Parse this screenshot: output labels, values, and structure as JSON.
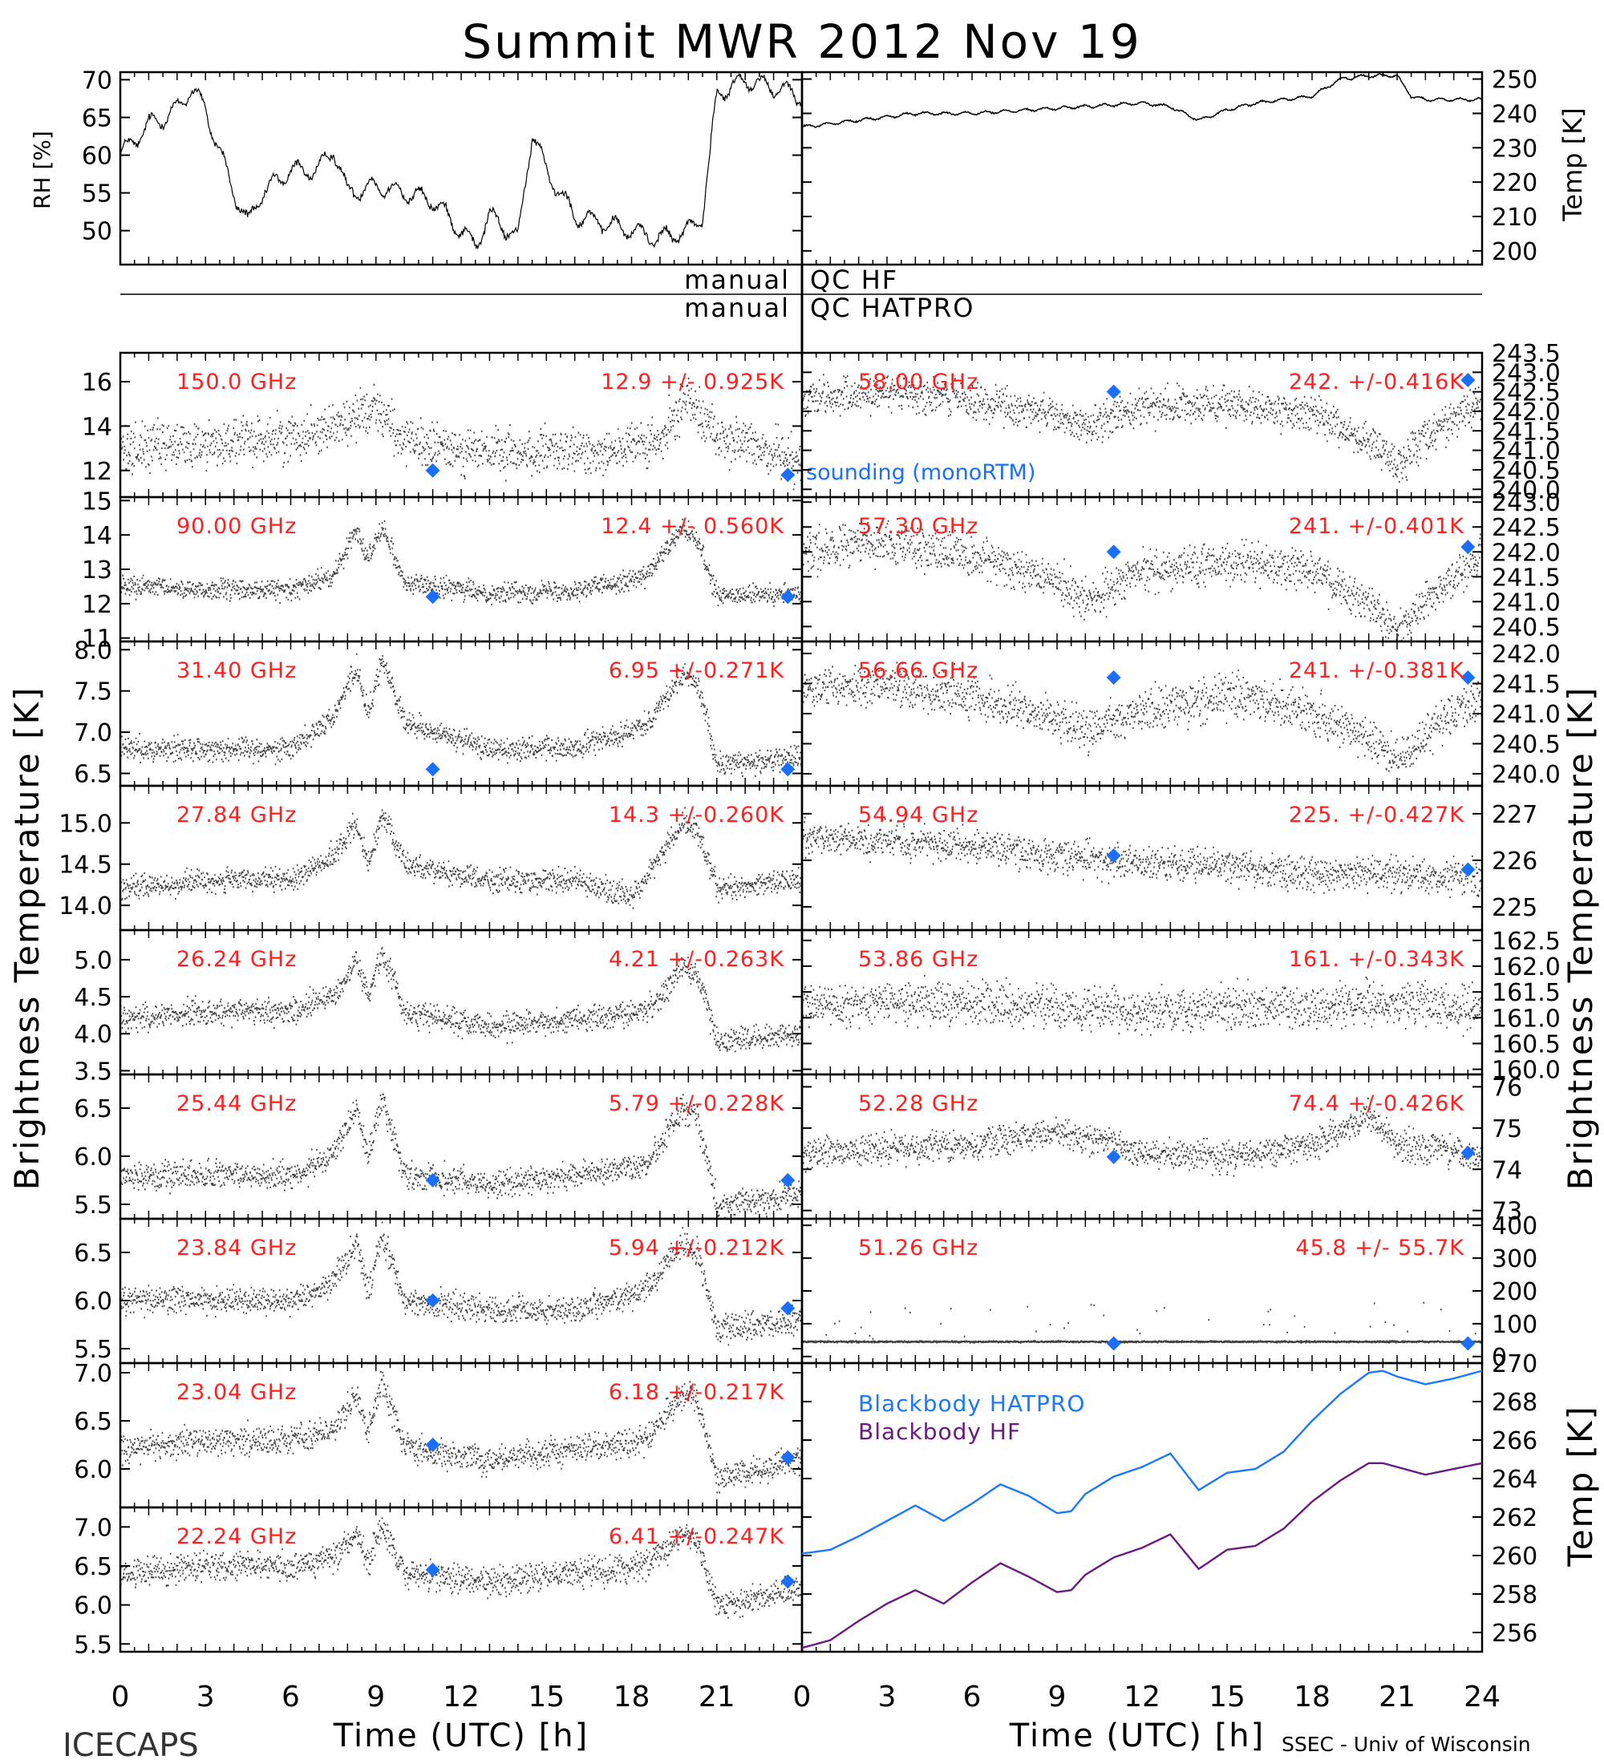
{
  "title": "Summit MWR 2012 Nov 19",
  "footer": {
    "left": "ICECAPS",
    "right": "SSEC - Univ of Wisconsin"
  },
  "colors": {
    "axis": "#000000",
    "data": "#000000",
    "label": "#ff2020",
    "sounding": "#1a6fff",
    "bb_hatpro": "#1a78ff",
    "bb_hf": "#6a1a80"
  },
  "qc": {
    "hf_left": "manual",
    "hf_right": "QC HF",
    "hatpro_left": "manual",
    "hatpro_right": "QC HATPRO"
  },
  "legend_sounding": "sounding (monoRTM)",
  "axis_labels": {
    "rh": "RH [%]",
    "temp": "Temp [K]",
    "tb_left": "Brightness Temperature [K]",
    "tb_right": "Brightness Temperature [K]",
    "bb_temp": "Temp [K]",
    "x_left": "Time (UTC) [h]",
    "x_right": "Time (UTC) [h]"
  },
  "x_ticks_left": [
    "0",
    "3",
    "6",
    "9",
    "12",
    "15",
    "18",
    "21"
  ],
  "x_ticks_right": [
    "0",
    "3",
    "6",
    "9",
    "12",
    "15",
    "18",
    "21",
    "24"
  ],
  "chart_data": [
    {
      "type": "line",
      "id": "rh",
      "ylabel": "RH [%]",
      "ylim": [
        45.5,
        71
      ],
      "yticks": [
        "70",
        "65",
        "60",
        "55",
        "50"
      ],
      "x": [
        0,
        1,
        2,
        2.5,
        3,
        4,
        4.5,
        5,
        6,
        7,
        7.5,
        8,
        9,
        10,
        11,
        12,
        12.5,
        13,
        14,
        14.5,
        15,
        16,
        17,
        18,
        19,
        20,
        20.5,
        21,
        22,
        23,
        24
      ],
      "values": [
        60,
        64,
        66,
        69,
        66,
        55,
        51,
        55,
        58,
        58,
        61,
        55,
        56,
        55,
        54,
        50,
        48,
        52,
        49,
        63,
        58,
        52,
        51,
        50,
        49,
        50,
        52,
        68,
        70,
        69,
        68
      ]
    },
    {
      "type": "line",
      "id": "temp",
      "ylabel": "Temp [K]",
      "ylim": [
        196,
        252
      ],
      "yticks": [
        "250",
        "240",
        "230",
        "220",
        "210",
        "200"
      ],
      "x": [
        0,
        2,
        4,
        6,
        8,
        10,
        12,
        13,
        14,
        15,
        16,
        18,
        19,
        20,
        21,
        21.5,
        22,
        23,
        24
      ],
      "values": [
        236,
        238,
        240,
        240,
        241,
        242,
        243,
        242,
        238,
        241,
        243,
        245,
        250,
        251,
        251,
        245,
        244,
        244,
        244
      ]
    },
    {
      "type": "scatter",
      "side": "left",
      "freq": "150.0 GHz",
      "stat": "12.9 +/- 0.925K",
      "ylim": [
        10.8,
        17.3
      ],
      "yticks": [
        "16",
        "14",
        "12"
      ],
      "series_x": [
        0,
        3,
        6,
        8,
        9,
        10,
        13,
        16,
        19,
        20,
        21,
        24
      ],
      "series_y": [
        13,
        13.2,
        13.5,
        14.2,
        15.0,
        13.2,
        12.8,
        12.8,
        13.2,
        15.5,
        13.5,
        12.5
      ],
      "noise": 0.9,
      "sounding": [
        [
          11,
          12.0
        ],
        [
          23.5,
          11.8
        ]
      ],
      "legend": true
    },
    {
      "type": "scatter",
      "side": "left",
      "freq": "90.00 GHz",
      "stat": "12.4 +/- 0.560K",
      "ylim": [
        10.9,
        15.1
      ],
      "yticks": [
        "15",
        "14",
        "13",
        "12",
        "11"
      ],
      "series_x": [
        0,
        3,
        6,
        7.5,
        8.3,
        8.7,
        9.2,
        10,
        13,
        16,
        18.5,
        19.8,
        20.3,
        21,
        24
      ],
      "series_y": [
        12.5,
        12.4,
        12.4,
        12.8,
        14.2,
        13.3,
        14.3,
        12.6,
        12.3,
        12.4,
        12.8,
        14.2,
        13.8,
        12.2,
        12.3
      ],
      "noise": 0.25,
      "sounding": [
        [
          11,
          12.2
        ],
        [
          23.5,
          12.2
        ]
      ],
      "legend": false
    },
    {
      "type": "scatter",
      "side": "left",
      "freq": "31.40 GHz",
      "stat": "6.95 +/-0.271K",
      "ylim": [
        6.35,
        8.1
      ],
      "yticks": [
        "8.0",
        "7.5",
        "7.0",
        "6.5"
      ],
      "series_x": [
        0,
        3,
        6,
        7.5,
        8.3,
        8.7,
        9.2,
        10,
        13,
        16,
        18.5,
        19.8,
        20.3,
        21,
        24
      ],
      "series_y": [
        6.8,
        6.8,
        6.8,
        7.2,
        7.8,
        7.2,
        7.9,
        7.1,
        6.8,
        6.8,
        7.1,
        7.7,
        7.6,
        6.6,
        6.7
      ],
      "noise": 0.12,
      "sounding": [
        [
          11,
          6.55
        ],
        [
          23.5,
          6.55
        ]
      ],
      "legend": false
    },
    {
      "type": "scatter",
      "side": "left",
      "freq": "27.84 GHz",
      "stat": "14.3 +/-0.260K",
      "ylim": [
        13.7,
        15.45
      ],
      "yticks": [
        "15.0",
        "14.5",
        "14.0"
      ],
      "series_x": [
        0,
        3,
        6,
        7.5,
        8.3,
        8.7,
        9.2,
        10,
        13,
        16,
        18,
        19.8,
        20.3,
        21,
        24
      ],
      "series_y": [
        14.2,
        14.3,
        14.3,
        14.6,
        15.0,
        14.5,
        15.1,
        14.5,
        14.3,
        14.3,
        14.1,
        15.0,
        14.9,
        14.2,
        14.3
      ],
      "noise": 0.12,
      "sounding": [],
      "legend": false
    },
    {
      "type": "scatter",
      "side": "left",
      "freq": "26.24 GHz",
      "stat": "4.21 +/-0.263K",
      "ylim": [
        3.45,
        5.4
      ],
      "yticks": [
        "5.0",
        "4.5",
        "4.0",
        "3.5"
      ],
      "series_x": [
        0,
        3,
        6,
        7.5,
        8.3,
        8.7,
        9.2,
        10,
        13,
        16,
        18.5,
        19.8,
        20.3,
        21,
        24
      ],
      "series_y": [
        4.2,
        4.3,
        4.3,
        4.5,
        5.0,
        4.5,
        5.1,
        4.3,
        4.1,
        4.2,
        4.3,
        4.9,
        4.8,
        3.9,
        4.0
      ],
      "noise": 0.15,
      "sounding": [],
      "legend": false
    },
    {
      "type": "scatter",
      "side": "left",
      "freq": "25.44 GHz",
      "stat": "5.79 +/-0.228K",
      "ylim": [
        5.35,
        6.85
      ],
      "yticks": [
        "6.5",
        "6.0",
        "5.5"
      ],
      "series_x": [
        0,
        3,
        6,
        7.5,
        8.3,
        8.7,
        9.2,
        10,
        13,
        16,
        18.5,
        19.8,
        20.3,
        21,
        24
      ],
      "series_y": [
        5.8,
        5.8,
        5.8,
        6.0,
        6.5,
        6.0,
        6.6,
        5.8,
        5.7,
        5.8,
        5.9,
        6.5,
        6.4,
        5.5,
        5.6
      ],
      "noise": 0.12,
      "sounding": [
        [
          11,
          5.75
        ],
        [
          23.5,
          5.75
        ]
      ],
      "legend": false
    },
    {
      "type": "scatter",
      "side": "left",
      "freq": "23.84 GHz",
      "stat": "5.94 +/-0.212K",
      "ylim": [
        5.35,
        6.85
      ],
      "yticks": [
        "6.5",
        "6.0",
        "5.5"
      ],
      "series_x": [
        0,
        3,
        6,
        7.5,
        8.3,
        8.7,
        9.2,
        10,
        13,
        16,
        18.5,
        19.8,
        20.3,
        21,
        24
      ],
      "series_y": [
        6.0,
        6.0,
        6.0,
        6.2,
        6.6,
        6.1,
        6.7,
        6.0,
        5.9,
        5.9,
        6.1,
        6.6,
        6.5,
        5.7,
        5.8
      ],
      "noise": 0.12,
      "sounding": [
        [
          11,
          6.0
        ],
        [
          23.5,
          5.92
        ]
      ],
      "legend": false
    },
    {
      "type": "scatter",
      "side": "left",
      "freq": "23.04 GHz",
      "stat": "6.18 +/-0.217K",
      "ylim": [
        5.6,
        7.1
      ],
      "yticks": [
        "7.0",
        "6.5",
        "6.0"
      ],
      "series_x": [
        0,
        3,
        6,
        7.5,
        8.3,
        8.7,
        9.2,
        10,
        13,
        16,
        18.5,
        19.8,
        20.3,
        21,
        24
      ],
      "series_y": [
        6.2,
        6.3,
        6.3,
        6.4,
        6.8,
        6.4,
        6.9,
        6.2,
        6.1,
        6.2,
        6.3,
        6.8,
        6.7,
        5.9,
        6.1
      ],
      "noise": 0.12,
      "sounding": [
        [
          11,
          6.25
        ],
        [
          23.5,
          6.12
        ]
      ],
      "legend": false
    },
    {
      "type": "scatter",
      "side": "left",
      "freq": "22.24 GHz",
      "stat": "6.41 +/-0.247K",
      "ylim": [
        5.4,
        7.25
      ],
      "yticks": [
        "7.0",
        "6.5",
        "6.0",
        "5.5"
      ],
      "series_x": [
        0,
        3,
        6,
        7.5,
        8.3,
        8.7,
        9.2,
        10,
        13,
        16,
        18.5,
        19.8,
        20.3,
        21,
        24
      ],
      "series_y": [
        6.4,
        6.5,
        6.5,
        6.6,
        6.9,
        6.5,
        7.0,
        6.4,
        6.3,
        6.4,
        6.5,
        6.9,
        6.8,
        6.0,
        6.2
      ],
      "noise": 0.15,
      "sounding": [
        [
          11,
          6.45
        ],
        [
          23.5,
          6.3
        ]
      ],
      "legend": false
    },
    {
      "type": "scatter",
      "side": "right",
      "freq": "58.00 GHz",
      "stat": "242. +/-0.416K",
      "ylim": [
        239.8,
        243.5
      ],
      "yticks": [
        "243.5",
        "243.0",
        "242.5",
        "242.0",
        "241.5",
        "241.0",
        "240.5",
        "240.0"
      ],
      "series_x": [
        0,
        3,
        6,
        9,
        10,
        12,
        15,
        18,
        20,
        21,
        22,
        24
      ],
      "series_y": [
        242.3,
        242.5,
        242.3,
        241.9,
        241.6,
        242.1,
        242.2,
        241.9,
        241.2,
        240.6,
        241.3,
        242.3
      ],
      "noise": 0.4,
      "sounding": [
        [
          11,
          242.5
        ],
        [
          23.5,
          242.8
        ]
      ],
      "legend": false
    },
    {
      "type": "scatter",
      "side": "right",
      "freq": "57.30 GHz",
      "stat": "241. +/-0.401K",
      "ylim": [
        240.2,
        243.1
      ],
      "yticks": [
        "243.0",
        "242.5",
        "242.0",
        "241.5",
        "241.0",
        "240.5"
      ],
      "series_x": [
        0,
        3,
        6,
        9,
        10,
        12,
        15,
        18,
        20,
        21,
        22,
        24
      ],
      "series_y": [
        242.0,
        242.2,
        241.9,
        241.4,
        241.0,
        241.6,
        241.8,
        241.6,
        240.9,
        240.4,
        241.0,
        242.0
      ],
      "noise": 0.35,
      "sounding": [
        [
          11,
          242.0
        ],
        [
          23.5,
          242.1
        ]
      ],
      "legend": false
    },
    {
      "type": "scatter",
      "side": "right",
      "freq": "56.66 GHz",
      "stat": "241. +/-0.381K",
      "ylim": [
        239.8,
        242.2
      ],
      "yticks": [
        "242.0",
        "241.5",
        "241.0",
        "240.5",
        "240.0"
      ],
      "series_x": [
        0,
        3,
        6,
        9,
        10,
        12,
        15,
        18,
        20,
        21,
        22,
        24
      ],
      "series_y": [
        241.4,
        241.5,
        241.3,
        240.9,
        240.7,
        241.1,
        241.3,
        241.0,
        240.6,
        240.2,
        240.7,
        241.3
      ],
      "noise": 0.3,
      "sounding": [
        [
          11,
          241.6
        ],
        [
          23.5,
          241.6
        ]
      ],
      "legend": false
    },
    {
      "type": "scatter",
      "side": "right",
      "freq": "54.94 GHz",
      "stat": "225. +/-0.427K",
      "ylim": [
        224.5,
        227.6
      ],
      "yticks": [
        "227",
        "226",
        "225"
      ],
      "series_x": [
        0,
        3,
        6,
        9,
        12,
        15,
        18,
        21,
        24
      ],
      "series_y": [
        226.5,
        226.4,
        226.3,
        226.1,
        225.9,
        225.9,
        225.7,
        225.7,
        225.6
      ],
      "noise": 0.3,
      "sounding": [
        [
          11,
          226.1
        ],
        [
          23.5,
          225.8
        ]
      ],
      "legend": false
    },
    {
      "type": "scatter",
      "side": "right",
      "freq": "53.86 GHz",
      "stat": "161. +/-0.343K",
      "ylim": [
        159.9,
        162.7
      ],
      "yticks": [
        "162.5",
        "162.0",
        "161.5",
        "161.0",
        "160.5",
        "160.0"
      ],
      "series_x": [
        0,
        3,
        6,
        9,
        12,
        15,
        18,
        21,
        24
      ],
      "series_y": [
        161.2,
        161.3,
        161.3,
        161.2,
        161.1,
        161.2,
        161.2,
        161.3,
        161.2
      ],
      "noise": 0.35,
      "sounding": [],
      "legend": false
    },
    {
      "type": "scatter",
      "side": "right",
      "freq": "52.28 GHz",
      "stat": "74.4 +/-0.426K",
      "ylim": [
        72.8,
        76.3
      ],
      "yticks": [
        "76",
        "75",
        "74",
        "73"
      ],
      "series_x": [
        0,
        3,
        6,
        9,
        12,
        15,
        18,
        20,
        21,
        24
      ],
      "series_y": [
        74.4,
        74.5,
        74.6,
        74.9,
        74.4,
        74.3,
        74.6,
        75.3,
        74.6,
        74.3
      ],
      "noise": 0.3,
      "sounding": [
        [
          11,
          74.3
        ],
        [
          23.5,
          74.4
        ]
      ],
      "legend": false
    },
    {
      "type": "scatter",
      "side": "right",
      "freq": "51.26 GHz",
      "stat": "45.8 +/- 55.7K",
      "ylim": [
        -20,
        420
      ],
      "yticks": [
        "400",
        "300",
        "200",
        "100",
        "0"
      ],
      "series_x": [
        0,
        24
      ],
      "series_y": [
        45,
        45
      ],
      "noise": 2,
      "spikes": true,
      "sounding": [
        [
          11,
          40
        ],
        [
          23.5,
          40
        ]
      ],
      "legend": false
    },
    {
      "type": "line",
      "id": "blackbody",
      "ylabel": "Temp [K]",
      "ylim": [
        255,
        270
      ],
      "yticks": [
        "270",
        "268",
        "266",
        "264",
        "262",
        "260",
        "258",
        "256"
      ],
      "series": [
        {
          "name": "Blackbody HATPRO",
          "x": [
            0,
            1,
            2,
            3,
            4,
            5,
            6,
            7,
            8,
            9,
            9.5,
            10,
            11,
            12,
            13,
            14,
            15,
            16,
            17,
            18,
            19,
            20,
            20.5,
            21,
            22,
            23,
            24
          ],
          "values": [
            260.1,
            260.3,
            261.0,
            261.8,
            262.6,
            261.8,
            262.7,
            263.7,
            263.1,
            262.2,
            262.3,
            263.2,
            264.1,
            264.6,
            265.3,
            263.4,
            264.3,
            264.5,
            265.4,
            267.0,
            268.4,
            269.5,
            269.6,
            269.3,
            268.9,
            269.2,
            269.6
          ]
        },
        {
          "name": "Blackbody HF",
          "x": [
            0,
            1,
            2,
            3,
            4,
            5,
            6,
            7,
            8,
            9,
            9.5,
            10,
            11,
            12,
            13,
            14,
            15,
            16,
            17,
            18,
            19,
            20,
            20.5,
            21,
            22,
            23,
            24
          ],
          "values": [
            255.2,
            255.6,
            256.6,
            257.5,
            258.2,
            257.5,
            258.6,
            259.6,
            258.9,
            258.1,
            258.2,
            259.0,
            259.9,
            260.4,
            261.1,
            259.3,
            260.3,
            260.5,
            261.4,
            262.8,
            263.9,
            264.8,
            264.8,
            264.6,
            264.2,
            264.5,
            264.8
          ]
        }
      ]
    }
  ]
}
